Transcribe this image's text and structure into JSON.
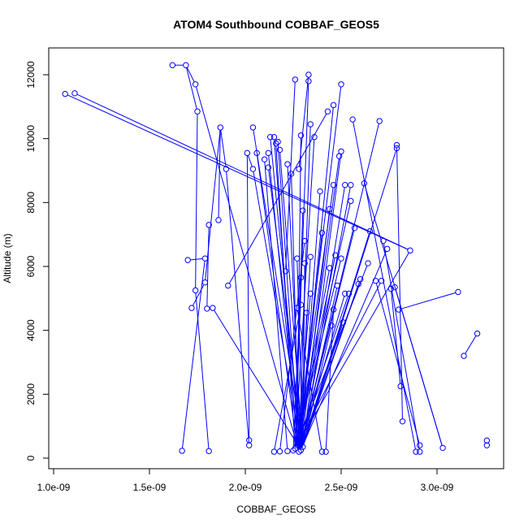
{
  "chart_data": {
    "type": "line",
    "title": "ATOM4 Southbound COBBAF_GEOS5",
    "xlabel": "COBBAF_GEOS5",
    "ylabel": "Altitude (m)",
    "xlim": [
      1e-09,
      3.3e-09
    ],
    "ylim": [
      0,
      12300
    ],
    "x_ticks": [
      1e-09,
      1.5e-09,
      2e-09,
      2.5e-09,
      3e-09
    ],
    "x_tick_labels": [
      "1.0e-09",
      "1.5e-09",
      "2.0e-09",
      "2.5e-09",
      "3.0e-09"
    ],
    "y_ticks": [
      0,
      2000,
      4000,
      6000,
      8000,
      10000,
      12000
    ],
    "y_tick_labels": [
      "0",
      "2000",
      "4000",
      "6000",
      "8000",
      "10000",
      "12000"
    ],
    "grid": false,
    "series_color": "#0000FF",
    "marker": "open-circle",
    "points": [
      [
        1.06e-09,
        11400
      ],
      [
        1.11e-09,
        11420
      ],
      [
        2.86e-09,
        6500
      ],
      [
        1.62e-09,
        12300
      ],
      [
        1.69e-09,
        12300
      ],
      [
        1.74e-09,
        11700
      ],
      [
        1.75e-09,
        10850
      ],
      [
        1.7e-09,
        6200
      ],
      [
        1.72e-09,
        4700
      ],
      [
        1.74e-09,
        5250
      ],
      [
        1.79e-09,
        6250
      ],
      [
        1.79e-09,
        5500
      ],
      [
        1.81e-09,
        7300
      ],
      [
        1.8e-09,
        4680
      ],
      [
        1.83e-09,
        4700
      ],
      [
        1.86e-09,
        7450
      ],
      [
        1.87e-09,
        10350
      ],
      [
        1.67e-09,
        230
      ],
      [
        1.81e-09,
        220
      ],
      [
        1.91e-09,
        5400
      ],
      [
        1.9e-09,
        9050
      ],
      [
        2.02e-09,
        560
      ],
      [
        2.02e-09,
        400
      ],
      [
        2.01e-09,
        9550
      ],
      [
        2.04e-09,
        9050
      ],
      [
        2.04e-09,
        10350
      ],
      [
        2.06e-09,
        9550
      ],
      [
        2.1e-09,
        9350
      ],
      [
        2.12e-09,
        9100
      ],
      [
        2.12e-09,
        9550
      ],
      [
        2.13e-09,
        10050
      ],
      [
        2.15e-09,
        10050
      ],
      [
        2.16e-09,
        9850
      ],
      [
        2.17e-09,
        9900
      ],
      [
        2.18e-09,
        9650
      ],
      [
        2.21e-09,
        5850
      ],
      [
        2.22e-09,
        9200
      ],
      [
        2.24e-09,
        8900
      ],
      [
        2.15e-09,
        200
      ],
      [
        2.18e-09,
        210
      ],
      [
        2.22e-09,
        220
      ],
      [
        2.25e-09,
        240
      ],
      [
        2.26e-09,
        11850
      ],
      [
        2.27e-09,
        6250
      ],
      [
        2.27e-09,
        4700
      ],
      [
        2.28e-09,
        9050
      ],
      [
        2.29e-09,
        5650
      ],
      [
        2.29e-09,
        4800
      ],
      [
        2.29e-09,
        10100
      ],
      [
        2.3e-09,
        7750
      ],
      [
        2.31e-09,
        6100
      ],
      [
        2.31e-09,
        6800
      ],
      [
        2.33e-09,
        12000
      ],
      [
        2.33e-09,
        11800
      ],
      [
        2.32e-09,
        4550
      ],
      [
        2.34e-09,
        10450
      ],
      [
        2.34e-09,
        6300
      ],
      [
        2.34e-09,
        5150
      ],
      [
        2.36e-09,
        10050
      ],
      [
        2.39e-09,
        8350
      ],
      [
        2.4e-09,
        7050
      ],
      [
        2.4e-09,
        200
      ],
      [
        2.42e-09,
        200
      ],
      [
        2.43e-09,
        10850
      ],
      [
        2.44e-09,
        5950
      ],
      [
        2.44e-09,
        7800
      ],
      [
        2.45e-09,
        4150
      ],
      [
        2.46e-09,
        4650
      ],
      [
        2.46e-09,
        8550
      ],
      [
        2.46e-09,
        11050
      ],
      [
        2.47e-09,
        6350
      ],
      [
        2.48e-09,
        5400
      ],
      [
        2.49e-09,
        9450
      ],
      [
        2.5e-09,
        11700
      ],
      [
        2.5e-09,
        9600
      ],
      [
        2.5e-09,
        6250
      ],
      [
        2.51e-09,
        4250
      ],
      [
        2.52e-09,
        5150
      ],
      [
        2.52e-09,
        8550
      ],
      [
        2.54e-09,
        5150
      ],
      [
        2.55e-09,
        8550
      ],
      [
        2.55e-09,
        8050
      ],
      [
        2.56e-09,
        10600
      ],
      [
        2.57e-09,
        7200
      ],
      [
        2.59e-09,
        5450
      ],
      [
        2.6e-09,
        5600
      ],
      [
        2.62e-09,
        8600
      ],
      [
        2.64e-09,
        6100
      ],
      [
        2.65e-09,
        7100
      ],
      [
        2.68e-09,
        5550
      ],
      [
        2.7e-09,
        10550
      ],
      [
        2.71e-09,
        5550
      ],
      [
        2.72e-09,
        6800
      ],
      [
        2.74e-09,
        6550
      ],
      [
        2.76e-09,
        5300
      ],
      [
        2.78e-09,
        5350
      ],
      [
        2.79e-09,
        9800
      ],
      [
        2.79e-09,
        9700
      ],
      [
        2.8e-09,
        4650
      ],
      [
        2.81e-09,
        2250
      ],
      [
        2.82e-09,
        1150
      ],
      [
        2.89e-09,
        200
      ],
      [
        2.91e-09,
        200
      ],
      [
        2.91e-09,
        400
      ],
      [
        3.03e-09,
        320
      ],
      [
        3.11e-09,
        5200
      ],
      [
        3.14e-09,
        3200
      ],
      [
        3.21e-09,
        3900
      ],
      [
        3.26e-09,
        400
      ],
      [
        3.26e-09,
        550
      ],
      [
        2.26e-09,
        300
      ],
      [
        2.28e-09,
        200
      ],
      [
        2.29e-09,
        250
      ],
      [
        2.3e-09,
        350
      ],
      [
        2.27e-09,
        400
      ]
    ],
    "segments": [
      [
        0,
        2
      ],
      [
        1,
        2
      ],
      [
        2,
        110
      ],
      [
        3,
        4
      ],
      [
        4,
        5
      ],
      [
        4,
        6
      ],
      [
        5,
        111
      ],
      [
        6,
        9
      ],
      [
        7,
        10
      ],
      [
        8,
        11
      ],
      [
        9,
        18
      ],
      [
        10,
        17
      ],
      [
        11,
        16
      ],
      [
        12,
        13
      ],
      [
        13,
        14
      ],
      [
        14,
        112
      ],
      [
        15,
        16
      ],
      [
        16,
        20
      ],
      [
        19,
        63
      ],
      [
        20,
        22
      ],
      [
        21,
        23
      ],
      [
        23,
        24
      ],
      [
        24,
        112
      ],
      [
        25,
        113
      ],
      [
        26,
        114
      ],
      [
        27,
        40
      ],
      [
        28,
        113
      ],
      [
        29,
        111
      ],
      [
        30,
        112
      ],
      [
        31,
        114
      ],
      [
        32,
        110
      ],
      [
        33,
        111
      ],
      [
        34,
        113
      ],
      [
        35,
        42
      ],
      [
        36,
        112
      ],
      [
        37,
        111
      ],
      [
        38,
        47
      ],
      [
        39,
        51
      ],
      [
        41,
        46
      ],
      [
        43,
        113
      ],
      [
        44,
        61
      ],
      [
        45,
        52
      ],
      [
        48,
        114
      ],
      [
        49,
        110
      ],
      [
        50,
        113
      ],
      [
        53,
        110
      ],
      [
        54,
        112
      ],
      [
        55,
        111
      ],
      [
        56,
        111
      ],
      [
        57,
        114
      ],
      [
        58,
        110
      ],
      [
        59,
        112
      ],
      [
        60,
        111
      ],
      [
        62,
        67
      ],
      [
        64,
        110
      ],
      [
        65,
        112
      ],
      [
        66,
        113
      ],
      [
        68,
        114
      ],
      [
        69,
        111
      ],
      [
        70,
        110
      ],
      [
        71,
        112
      ],
      [
        72,
        111
      ],
      [
        73,
        114
      ],
      [
        74,
        113
      ],
      [
        75,
        110
      ],
      [
        76,
        112
      ],
      [
        77,
        111
      ],
      [
        78,
        113
      ],
      [
        79,
        114
      ],
      [
        80,
        112
      ],
      [
        81,
        110
      ],
      [
        82,
        101
      ],
      [
        83,
        111
      ],
      [
        84,
        112
      ],
      [
        85,
        113
      ],
      [
        86,
        104
      ],
      [
        87,
        110
      ],
      [
        88,
        112
      ],
      [
        89,
        103
      ],
      [
        90,
        111
      ],
      [
        91,
        114
      ],
      [
        92,
        102
      ],
      [
        93,
        112
      ],
      [
        94,
        99
      ],
      [
        95,
        104
      ],
      [
        96,
        100
      ],
      [
        97,
        113
      ],
      [
        98,
        105
      ],
      [
        106,
        107
      ],
      [
        108,
        109
      ]
    ]
  }
}
